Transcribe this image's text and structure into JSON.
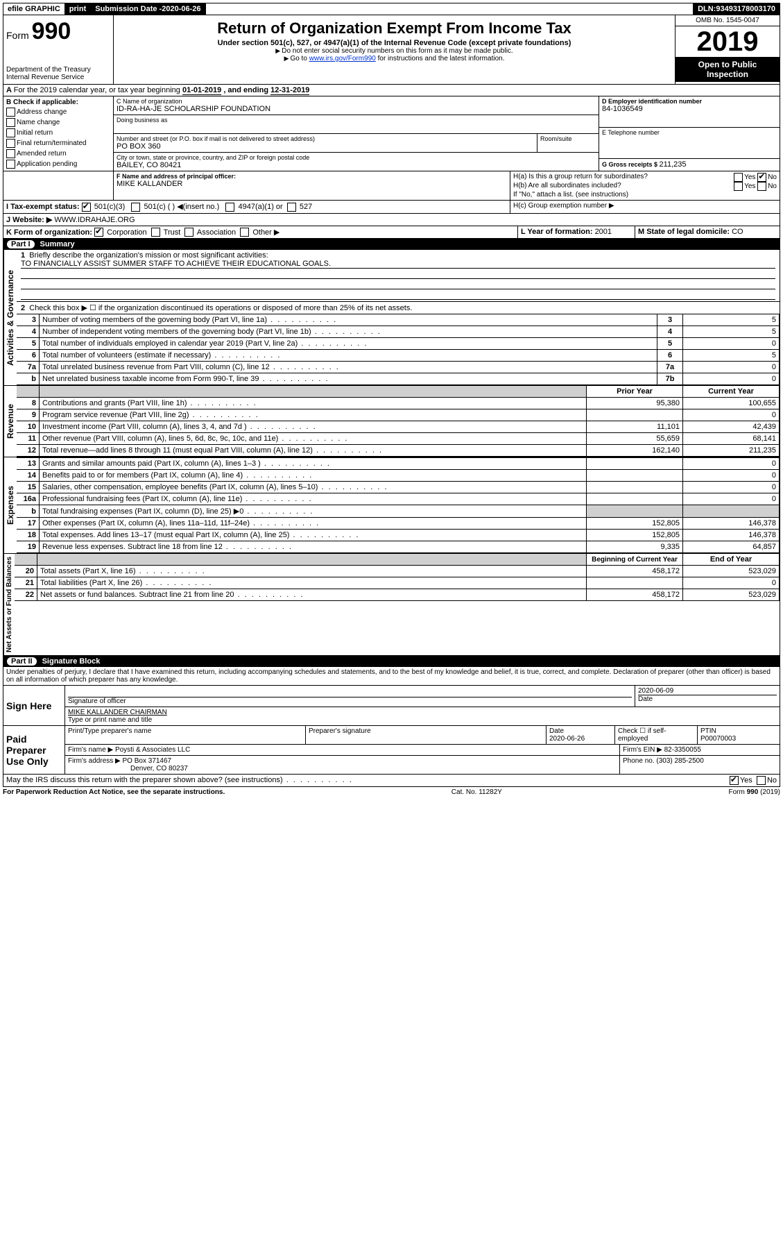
{
  "topbar": {
    "efile": "efile GRAPHIC",
    "print": "print",
    "submission_label": "Submission Date - ",
    "submission_date": "2020-06-26",
    "dln_label": "DLN: ",
    "dln": "93493178003170"
  },
  "header": {
    "form_word": "Form",
    "form_num": "990",
    "dept": "Department of the Treasury",
    "irs": "Internal Revenue Service",
    "title": "Return of Organization Exempt From Income Tax",
    "subtitle": "Under section 501(c), 527, or 4947(a)(1) of the Internal Revenue Code (except private foundations)",
    "note1": "Do not enter social security numbers on this form as it may be made public.",
    "note2_pre": "Go to ",
    "note2_link": "www.irs.gov/Form990",
    "note2_post": " for instructions and the latest information.",
    "omb": "OMB No. 1545-0047",
    "year": "2019",
    "open": "Open to Public Inspection"
  },
  "period": {
    "text_a": "For the 2019 calendar year, or tax year beginning ",
    "begin": "01-01-2019",
    "text_b": " , and ending ",
    "end": "12-31-2019"
  },
  "box_b": {
    "label": "B Check if applicable:",
    "items": [
      "Address change",
      "Name change",
      "Initial return",
      "Final return/terminated",
      "Amended return",
      "Application pending"
    ]
  },
  "box_c": {
    "label": "C Name of organization",
    "name": "ID-RA-HA-JE SCHOLARSHIP FOUNDATION",
    "dba_label": "Doing business as",
    "street_label": "Number and street (or P.O. box if mail is not delivered to street address)",
    "room_label": "Room/suite",
    "street": "PO BOX 360",
    "city_label": "City or town, state or province, country, and ZIP or foreign postal code",
    "city": "BAILEY, CO  80421"
  },
  "box_d": {
    "label": "D Employer identification number",
    "value": "84-1036549"
  },
  "box_e": {
    "label": "E Telephone number",
    "value": ""
  },
  "box_g": {
    "label": "G Gross receipts $ ",
    "value": "211,235"
  },
  "box_f": {
    "label": "F  Name and address of principal officer:",
    "value": "MIKE KALLANDER"
  },
  "box_h": {
    "a_label": "H(a)  Is this a group return for subordinates?",
    "b_label": "H(b)  Are all subordinates included?",
    "b_note": "If \"No,\" attach a list. (see instructions)",
    "c_label": "H(c)  Group exemption number ▶",
    "yes": "Yes",
    "no": "No"
  },
  "box_i": {
    "label": "I    Tax-exempt status:",
    "opts": [
      "501(c)(3)",
      "501(c) (  ) ◀(insert no.)",
      "4947(a)(1) or",
      "527"
    ]
  },
  "box_j": {
    "label": "J    Website: ▶",
    "value": "WWW.IDRAHAJE.ORG"
  },
  "box_k": {
    "label": "K Form of organization:",
    "opts": [
      "Corporation",
      "Trust",
      "Association",
      "Other ▶"
    ]
  },
  "box_l": {
    "label": "L Year of formation: ",
    "value": "2001"
  },
  "box_m": {
    "label": "M State of legal domicile: ",
    "value": "CO"
  },
  "part1": {
    "title": "Part I",
    "subtitle": "Summary",
    "vert1": "Activities & Governance",
    "vert2": "Revenue",
    "vert3": "Expenses",
    "vert4": "Net Assets or Fund Balances",
    "line1_label": "Briefly describe the organization's mission or most significant activities:",
    "line1_value": "TO FINANCIALLY ASSIST SUMMER STAFF TO ACHIEVE THEIR EDUCATIONAL GOALS.",
    "line2_label": "Check this box ▶ ☐  if the organization discontinued its operations or disposed of more than 25% of its net assets.",
    "lines_gov": [
      {
        "n": "3",
        "d": "Number of voting members of the governing body (Part VI, line 1a)",
        "box": "3",
        "v": "5"
      },
      {
        "n": "4",
        "d": "Number of independent voting members of the governing body (Part VI, line 1b)",
        "box": "4",
        "v": "5"
      },
      {
        "n": "5",
        "d": "Total number of individuals employed in calendar year 2019 (Part V, line 2a)",
        "box": "5",
        "v": "0"
      },
      {
        "n": "6",
        "d": "Total number of volunteers (estimate if necessary)",
        "box": "6",
        "v": "5"
      },
      {
        "n": "7a",
        "d": "Total unrelated business revenue from Part VIII, column (C), line 12",
        "box": "7a",
        "v": "0"
      },
      {
        "n": "b",
        "d": "Net unrelated business taxable income from Form 990-T, line 39",
        "box": "7b",
        "v": "0"
      }
    ],
    "col_prior": "Prior Year",
    "col_current": "Current Year",
    "lines_rev": [
      {
        "n": "8",
        "d": "Contributions and grants (Part VIII, line 1h)",
        "p": "95,380",
        "c": "100,655"
      },
      {
        "n": "9",
        "d": "Program service revenue (Part VIII, line 2g)",
        "p": "",
        "c": "0"
      },
      {
        "n": "10",
        "d": "Investment income (Part VIII, column (A), lines 3, 4, and 7d )",
        "p": "11,101",
        "c": "42,439"
      },
      {
        "n": "11",
        "d": "Other revenue (Part VIII, column (A), lines 5, 6d, 8c, 9c, 10c, and 11e)",
        "p": "55,659",
        "c": "68,141"
      },
      {
        "n": "12",
        "d": "Total revenue—add lines 8 through 11 (must equal Part VIII, column (A), line 12)",
        "p": "162,140",
        "c": "211,235"
      }
    ],
    "lines_exp": [
      {
        "n": "13",
        "d": "Grants and similar amounts paid (Part IX, column (A), lines 1–3 )",
        "p": "",
        "c": "0"
      },
      {
        "n": "14",
        "d": "Benefits paid to or for members (Part IX, column (A), line 4)",
        "p": "",
        "c": "0"
      },
      {
        "n": "15",
        "d": "Salaries, other compensation, employee benefits (Part IX, column (A), lines 5–10)",
        "p": "",
        "c": "0"
      },
      {
        "n": "16a",
        "d": "Professional fundraising fees (Part IX, column (A), line 11e)",
        "p": "",
        "c": "0"
      },
      {
        "n": "b",
        "d": "Total fundraising expenses (Part IX, column (D), line 25) ▶0",
        "p": "shade",
        "c": "shade"
      },
      {
        "n": "17",
        "d": "Other expenses (Part IX, column (A), lines 11a–11d, 11f–24e)",
        "p": "152,805",
        "c": "146,378"
      },
      {
        "n": "18",
        "d": "Total expenses. Add lines 13–17 (must equal Part IX, column (A), line 25)",
        "p": "152,805",
        "c": "146,378"
      },
      {
        "n": "19",
        "d": "Revenue less expenses. Subtract line 18 from line 12",
        "p": "9,335",
        "c": "64,857"
      }
    ],
    "col_begin": "Beginning of Current Year",
    "col_end": "End of Year",
    "lines_net": [
      {
        "n": "20",
        "d": "Total assets (Part X, line 16)",
        "p": "458,172",
        "c": "523,029"
      },
      {
        "n": "21",
        "d": "Total liabilities (Part X, line 26)",
        "p": "",
        "c": "0"
      },
      {
        "n": "22",
        "d": "Net assets or fund balances. Subtract line 21 from line 20",
        "p": "458,172",
        "c": "523,029"
      }
    ]
  },
  "part2": {
    "title": "Part II",
    "subtitle": "Signature Block",
    "declaration": "Under penalties of perjury, I declare that I have examined this return, including accompanying schedules and statements, and to the best of my knowledge and belief, it is true, correct, and complete. Declaration of preparer (other than officer) is based on all information of which preparer has any knowledge.",
    "sign_here": "Sign Here",
    "sig_officer": "Signature of officer",
    "sig_date": "2020-06-09",
    "date_label": "Date",
    "officer_name": "MIKE KALLANDER  CHAIRMAN",
    "type_name": "Type or print name and title",
    "paid": "Paid Preparer Use Only",
    "prep_name_label": "Print/Type preparer's name",
    "prep_sig_label": "Preparer's signature",
    "prep_date_label": "Date",
    "prep_date": "2020-06-26",
    "check_self": "Check ☐ if self-employed",
    "ptin_label": "PTIN",
    "ptin": "P00070003",
    "firm_name_label": "Firm's name    ▶",
    "firm_name": "Poysti & Associates LLC",
    "firm_ein_label": "Firm's EIN ▶",
    "firm_ein": "82-3350055",
    "firm_addr_label": "Firm's address ▶",
    "firm_addr1": "PO Box 371467",
    "firm_addr2": "Denver, CO  80237",
    "phone_label": "Phone no. ",
    "phone": "(303) 285-2500",
    "discuss": "May the IRS discuss this return with the preparer shown above? (see instructions)",
    "paperwork": "For Paperwork Reduction Act Notice, see the separate instructions.",
    "cat": "Cat. No. 11282Y",
    "formno": "Form 990 (2019)"
  }
}
